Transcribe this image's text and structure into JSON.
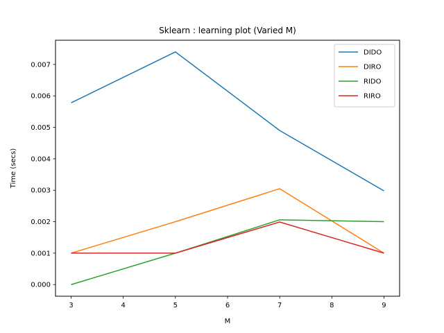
{
  "chart_data": {
    "type": "line",
    "title": "Sklearn : learning plot (Varied M)",
    "xlabel": "M",
    "ylabel": "Time (secs)",
    "x": [
      3,
      5,
      7,
      9
    ],
    "xlim": [
      2.7,
      9.3
    ],
    "ylim": [
      -0.00037,
      0.00777
    ],
    "xticks": [
      3,
      4,
      5,
      6,
      7,
      8,
      9
    ],
    "yticks": [
      0.0,
      0.001,
      0.002,
      0.003,
      0.004,
      0.005,
      0.006,
      0.007
    ],
    "ytick_labels": [
      "0.000",
      "0.001",
      "0.002",
      "0.003",
      "0.004",
      "0.005",
      "0.006",
      "0.007"
    ],
    "grid": false,
    "legend_position": "top-right",
    "series": [
      {
        "name": "DIDO",
        "color": "#1f77b4",
        "values": [
          0.00578,
          0.0074,
          0.0049,
          0.00298
        ]
      },
      {
        "name": "DIRO",
        "color": "#ff7f0e",
        "values": [
          0.001,
          0.002,
          0.00305,
          0.001
        ]
      },
      {
        "name": "RIDO",
        "color": "#2ca02c",
        "values": [
          0.0,
          0.001,
          0.00206,
          0.002
        ]
      },
      {
        "name": "RIRO",
        "color": "#d62728",
        "values": [
          0.001,
          0.001,
          0.00199,
          0.001
        ]
      }
    ]
  }
}
